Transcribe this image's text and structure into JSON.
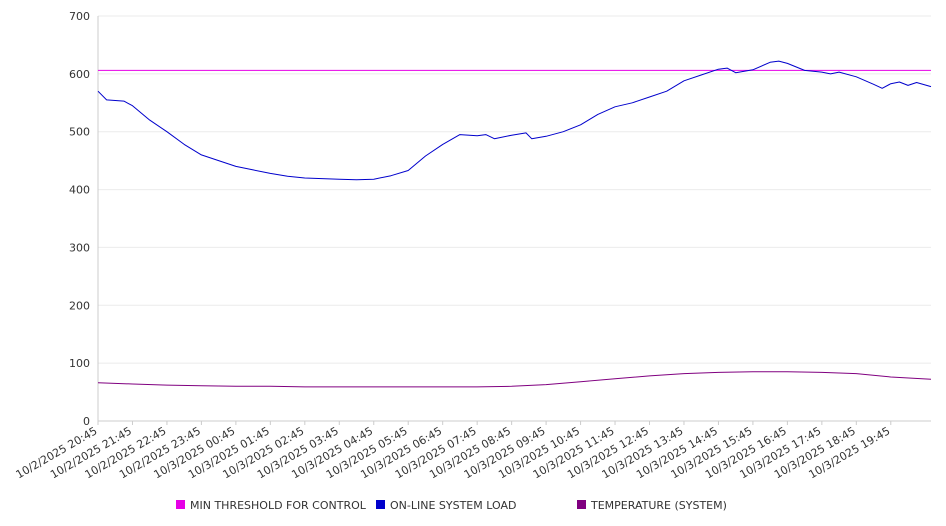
{
  "chart_data": {
    "type": "line",
    "title": "",
    "xlabel": "",
    "ylabel": "",
    "ylim": [
      0,
      700
    ],
    "yticks": [
      0,
      100,
      200,
      300,
      400,
      500,
      600,
      700
    ],
    "grid": "horizontal",
    "legend_position": "bottom",
    "x_start": "10/2/2025 20:45",
    "x_end": "10/3/2025 20:55",
    "x_tick_labels": [
      "10/2/2025 20:45",
      "10/2/2025 21:45",
      "10/2/2025 22:45",
      "10/2/2025 23:45",
      "10/3/2025 00:45",
      "10/3/2025 01:45",
      "10/3/2025 02:45",
      "10/3/2025 03:45",
      "10/3/2025 04:45",
      "10/3/2025 05:45",
      "10/3/2025 06:45",
      "10/3/2025 07:45",
      "10/3/2025 08:45",
      "10/3/2025 09:45",
      "10/3/2025 10:45",
      "10/3/2025 11:45",
      "10/3/2025 12:45",
      "10/3/2025 13:45",
      "10/3/2025 14:45",
      "10/3/2025 15:45",
      "10/3/2025 16:45",
      "10/3/2025 17:45",
      "10/3/2025 18:45",
      "10/3/2025 19:45"
    ],
    "series": [
      {
        "name": "MIN THRESHOLD FOR CONTROL",
        "color": "#e600e6",
        "points": [
          [
            "10/2/2025 20:45",
            606
          ],
          [
            "10/3/2025 20:55",
            606
          ]
        ]
      },
      {
        "name": "ON-LINE SYSTEM LOAD",
        "color": "#0000cc",
        "points": [
          [
            "10/2/2025 20:45",
            570
          ],
          [
            "10/2/2025 21:00",
            555
          ],
          [
            "10/2/2025 21:30",
            553
          ],
          [
            "10/2/2025 21:45",
            545
          ],
          [
            "10/2/2025 22:15",
            520
          ],
          [
            "10/2/2025 22:45",
            500
          ],
          [
            "10/2/2025 23:15",
            478
          ],
          [
            "10/2/2025 23:45",
            460
          ],
          [
            "10/3/2025 00:15",
            450
          ],
          [
            "10/3/2025 00:45",
            440
          ],
          [
            "10/3/2025 01:15",
            434
          ],
          [
            "10/3/2025 01:45",
            428
          ],
          [
            "10/3/2025 02:15",
            423
          ],
          [
            "10/3/2025 02:45",
            420
          ],
          [
            "10/3/2025 03:15",
            419
          ],
          [
            "10/3/2025 03:45",
            418
          ],
          [
            "10/3/2025 04:15",
            417
          ],
          [
            "10/3/2025 04:45",
            418
          ],
          [
            "10/3/2025 05:15",
            424
          ],
          [
            "10/3/2025 05:45",
            433
          ],
          [
            "10/3/2025 06:15",
            458
          ],
          [
            "10/3/2025 06:45",
            478
          ],
          [
            "10/3/2025 07:15",
            495
          ],
          [
            "10/3/2025 07:45",
            493
          ],
          [
            "10/3/2025 08:00",
            495
          ],
          [
            "10/3/2025 08:15",
            488
          ],
          [
            "10/3/2025 08:45",
            494
          ],
          [
            "10/3/2025 09:10",
            498
          ],
          [
            "10/3/2025 09:20",
            488
          ],
          [
            "10/3/2025 09:45",
            492
          ],
          [
            "10/3/2025 10:15",
            500
          ],
          [
            "10/3/2025 10:45",
            512
          ],
          [
            "10/3/2025 11:15",
            530
          ],
          [
            "10/3/2025 11:45",
            543
          ],
          [
            "10/3/2025 12:15",
            550
          ],
          [
            "10/3/2025 12:45",
            560
          ],
          [
            "10/3/2025 13:15",
            570
          ],
          [
            "10/3/2025 13:45",
            588
          ],
          [
            "10/3/2025 14:15",
            598
          ],
          [
            "10/3/2025 14:45",
            608
          ],
          [
            "10/3/2025 15:00",
            610
          ],
          [
            "10/3/2025 15:15",
            602
          ],
          [
            "10/3/2025 15:45",
            607
          ],
          [
            "10/3/2025 16:15",
            620
          ],
          [
            "10/3/2025 16:30",
            622
          ],
          [
            "10/3/2025 16:45",
            618
          ],
          [
            "10/3/2025 17:15",
            606
          ],
          [
            "10/3/2025 17:45",
            603
          ],
          [
            "10/3/2025 18:00",
            600
          ],
          [
            "10/3/2025 18:15",
            603
          ],
          [
            "10/3/2025 18:45",
            595
          ],
          [
            "10/3/2025 19:15",
            582
          ],
          [
            "10/3/2025 19:30",
            575
          ],
          [
            "10/3/2025 19:45",
            583
          ],
          [
            "10/3/2025 20:00",
            586
          ],
          [
            "10/3/2025 20:15",
            580
          ],
          [
            "10/3/2025 20:30",
            585
          ],
          [
            "10/3/2025 20:55",
            578
          ]
        ]
      },
      {
        "name": "TEMPERATURE (SYSTEM)",
        "color": "#800080",
        "points": [
          [
            "10/2/2025 20:45",
            66
          ],
          [
            "10/2/2025 21:45",
            64
          ],
          [
            "10/2/2025 22:45",
            62
          ],
          [
            "10/2/2025 23:45",
            61
          ],
          [
            "10/3/2025 00:45",
            60
          ],
          [
            "10/3/2025 01:45",
            60
          ],
          [
            "10/3/2025 02:45",
            59
          ],
          [
            "10/3/2025 03:45",
            59
          ],
          [
            "10/3/2025 04:45",
            59
          ],
          [
            "10/3/2025 05:45",
            59
          ],
          [
            "10/3/2025 06:45",
            59
          ],
          [
            "10/3/2025 07:45",
            59
          ],
          [
            "10/3/2025 08:45",
            60
          ],
          [
            "10/3/2025 09:45",
            63
          ],
          [
            "10/3/2025 10:45",
            68
          ],
          [
            "10/3/2025 11:45",
            73
          ],
          [
            "10/3/2025 12:45",
            78
          ],
          [
            "10/3/2025 13:45",
            82
          ],
          [
            "10/3/2025 14:45",
            84
          ],
          [
            "10/3/2025 15:45",
            85
          ],
          [
            "10/3/2025 16:45",
            85
          ],
          [
            "10/3/2025 17:45",
            84
          ],
          [
            "10/3/2025 18:45",
            82
          ],
          [
            "10/3/2025 19:45",
            76
          ],
          [
            "10/3/2025 20:55",
            72
          ]
        ]
      }
    ]
  }
}
